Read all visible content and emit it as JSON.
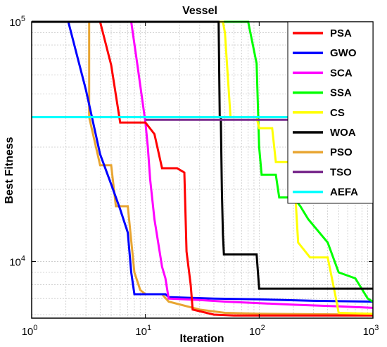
{
  "chart_data": {
    "type": "line",
    "title": "Vessel",
    "xlabel": "Iteration",
    "ylabel": "Best Fitness",
    "xscale": "log",
    "yscale": "log",
    "xlim": [
      1,
      1000
    ],
    "ylim": [
      5800,
      100000
    ],
    "x_ticks": [
      {
        "value": 1,
        "base": "10",
        "exp": "0"
      },
      {
        "value": 10,
        "base": "10",
        "exp": "1"
      },
      {
        "value": 100,
        "base": "10",
        "exp": "2"
      },
      {
        "value": 1000,
        "base": "10",
        "exp": "3"
      }
    ],
    "y_ticks": [
      {
        "value": 10000,
        "base": "10",
        "exp": "4"
      },
      {
        "value": 100000,
        "base": "10",
        "exp": "5"
      }
    ],
    "grid": true,
    "legend_position": "top-right",
    "series": [
      {
        "name": "PSA",
        "color": "#ff0000",
        "points": [
          [
            1,
            100000
          ],
          [
            4,
            100000
          ],
          [
            5,
            66000
          ],
          [
            6,
            38000
          ],
          [
            9,
            38000
          ],
          [
            10,
            38000
          ],
          [
            12,
            34000
          ],
          [
            14,
            24500
          ],
          [
            19,
            24500
          ],
          [
            22,
            23500
          ],
          [
            23,
            11000
          ],
          [
            25,
            8000
          ],
          [
            26,
            6300
          ],
          [
            40,
            6000
          ],
          [
            60,
            5950
          ],
          [
            1000,
            5950
          ]
        ]
      },
      {
        "name": "GWO",
        "color": "#0000ff",
        "points": [
          [
            1,
            100000
          ],
          [
            2.1,
            100000
          ],
          [
            3,
            52000
          ],
          [
            4,
            28000
          ],
          [
            5,
            21000
          ],
          [
            6,
            16500
          ],
          [
            7,
            13200
          ],
          [
            7.5,
            9000
          ],
          [
            8,
            7300
          ],
          [
            15,
            7300
          ],
          [
            16,
            7100
          ],
          [
            40,
            7000
          ],
          [
            100,
            6950
          ],
          [
            300,
            6850
          ],
          [
            1000,
            6800
          ]
        ]
      },
      {
        "name": "SCA",
        "color": "#ff00ff",
        "points": [
          [
            1,
            100000
          ],
          [
            7.5,
            100000
          ],
          [
            8.5,
            66000
          ],
          [
            10,
            38000
          ],
          [
            10.5,
            30000
          ],
          [
            11,
            22000
          ],
          [
            12,
            15000
          ],
          [
            14,
            9500
          ],
          [
            15,
            8500
          ],
          [
            16,
            7000
          ],
          [
            30,
            6900
          ],
          [
            50,
            6800
          ],
          [
            100,
            6700
          ],
          [
            200,
            6600
          ],
          [
            500,
            6500
          ],
          [
            1000,
            6400
          ]
        ]
      },
      {
        "name": "SSA",
        "color": "#00ff00",
        "points": [
          [
            1,
            100000
          ],
          [
            80,
            100000
          ],
          [
            95,
            67000
          ],
          [
            100,
            30000
          ],
          [
            105,
            23000
          ],
          [
            140,
            23000
          ],
          [
            150,
            18500
          ],
          [
            200,
            18500
          ],
          [
            230,
            17000
          ],
          [
            270,
            15000
          ],
          [
            400,
            12000
          ],
          [
            500,
            9000
          ],
          [
            700,
            8500
          ],
          [
            900,
            7000
          ],
          [
            1000,
            6800
          ]
        ]
      },
      {
        "name": "CS",
        "color": "#ffff00",
        "points": [
          [
            1,
            100000
          ],
          [
            48,
            100000
          ],
          [
            50,
            90000
          ],
          [
            52,
            68000
          ],
          [
            56,
            40000
          ],
          [
            95,
            40000
          ],
          [
            100,
            36000
          ],
          [
            130,
            36000
          ],
          [
            140,
            26000
          ],
          [
            200,
            26000
          ],
          [
            220,
            12000
          ],
          [
            280,
            10400
          ],
          [
            400,
            10400
          ],
          [
            460,
            7500
          ],
          [
            500,
            6100
          ],
          [
            1000,
            6050
          ]
        ]
      },
      {
        "name": "WOA",
        "color": "#000000",
        "points": [
          [
            1,
            100000
          ],
          [
            44,
            100000
          ],
          [
            45,
            40000
          ],
          [
            46,
            40000
          ],
          [
            47,
            20000
          ],
          [
            48,
            13000
          ],
          [
            49,
            10700
          ],
          [
            95,
            10700
          ],
          [
            100,
            7700
          ],
          [
            1000,
            7700
          ]
        ]
      },
      {
        "name": "PSO",
        "color": "#e8a531",
        "points": [
          [
            1,
            100000
          ],
          [
            3.2,
            100000
          ],
          [
            3.2,
            40000
          ],
          [
            4,
            25200
          ],
          [
            5,
            25200
          ],
          [
            5.5,
            17000
          ],
          [
            7,
            17000
          ],
          [
            8,
            9000
          ],
          [
            9,
            7600
          ],
          [
            10,
            7300
          ],
          [
            14,
            7300
          ],
          [
            16,
            6800
          ],
          [
            30,
            6300
          ],
          [
            50,
            6100
          ],
          [
            100,
            6050
          ],
          [
            1000,
            6000
          ]
        ]
      },
      {
        "name": "TSO",
        "color": "#7b2d8e",
        "points": [
          [
            10,
            39000
          ],
          [
            1000,
            39000
          ]
        ]
      },
      {
        "name": "AEFA",
        "color": "#00ffff",
        "points": [
          [
            1,
            40000
          ],
          [
            1000,
            40000
          ]
        ]
      }
    ]
  }
}
